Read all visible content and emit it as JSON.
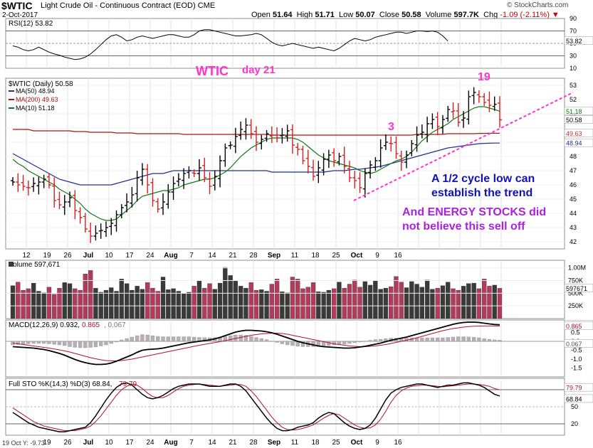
{
  "header": {
    "symbol": "$WTIC",
    "description": "Light Crude Oil - Continuous Contract (EOD)",
    "exchange": "CME",
    "date": "2-Oct-2017",
    "open_label": "Open",
    "open": "51.64",
    "high_label": "High",
    "high": "51.71",
    "low_label": "Low",
    "low": "50.07",
    "close_label": "Close",
    "close": "50.58",
    "volume_label": "Volume",
    "volume": "597.7K",
    "chg_label": "Chg",
    "chg": "-1.09 (-2.11%)",
    "watermark": "© StockCharts.com",
    "bottom_note": "19 Oct Y: -9.73"
  },
  "colors": {
    "up": "#000000",
    "down": "#d42020",
    "ma50": "#1f2f8f",
    "ma200": "#b01010",
    "ma10": "#117711",
    "annotation_magenta": "#ff33cc",
    "annotation_blue": "#1111bb",
    "annotation_purple": "#aa22dd",
    "price_tag": "#c43030"
  },
  "chart_data": [
    {
      "type": "line",
      "title": "RSI(12) 53.82",
      "legend": [
        "RSI(12) 53.82"
      ],
      "ylim": [
        10,
        90
      ],
      "yticks": [
        10,
        30,
        50,
        70,
        90
      ],
      "last_value_tag": "53.82",
      "values": [
        46,
        44,
        40,
        38,
        40,
        44,
        40,
        36,
        33,
        31,
        28,
        26,
        24,
        25,
        28,
        33,
        40,
        48,
        56,
        62,
        64,
        60,
        54,
        56,
        60,
        62,
        60,
        58,
        60,
        62,
        64,
        64,
        62,
        60,
        60,
        64,
        70,
        72,
        72,
        70,
        68,
        66,
        64,
        62,
        62,
        63,
        64,
        66,
        64,
        58,
        52,
        48,
        46,
        48,
        50,
        48,
        46,
        44,
        42,
        44,
        42,
        40,
        38,
        42,
        48,
        54,
        58,
        56,
        54,
        56,
        60,
        62,
        64,
        66,
        68,
        68,
        66,
        68,
        70,
        70,
        69,
        70,
        68,
        62,
        53.82
      ]
    },
    {
      "type": "ohlc",
      "title": "$WTIC (Daily) 50.58",
      "legend": [
        "$WTIC (Daily) 50.58",
        "MA(50) 48.94",
        "MA(200) 49.63",
        "MA(10) 51.18"
      ],
      "ylim": [
        41.5,
        53.5
      ],
      "yticks": [
        42,
        43,
        44,
        45,
        46,
        47,
        48,
        49,
        50,
        51,
        52,
        53
      ],
      "xtick_labels": [
        "12",
        "19",
        "26",
        "Jul",
        "10",
        "17",
        "24",
        "Aug",
        "7",
        "14",
        "21",
        "28",
        "Sep",
        "11",
        "18",
        "25",
        "Oct",
        "9",
        "16"
      ],
      "price_tags": [
        "51.18",
        "50.58",
        "49.63",
        "48.94"
      ],
      "closes": [
        46.2,
        46.0,
        45.9,
        45.8,
        46.1,
        46.2,
        46.4,
        46.0,
        44.9,
        44.6,
        44.8,
        45.1,
        44.2,
        43.7,
        42.9,
        42.4,
        42.6,
        42.8,
        43.0,
        43.3,
        43.9,
        44.4,
        44.8,
        45.3,
        46.5,
        47.1,
        46.0,
        44.9,
        44.3,
        44.8,
        45.5,
        46.1,
        46.4,
        46.8,
        47.0,
        46.8,
        47.2,
        46.5,
        45.9,
        46.6,
        47.7,
        48.6,
        48.8,
        49.4,
        49.9,
        50.2,
        49.6,
        49.0,
        49.2,
        49.6,
        49.5,
        49.3,
        49.5,
        49.8,
        48.8,
        48.5,
        47.7,
        47.3,
        46.6,
        47.2,
        47.8,
        48.1,
        47.7,
        48.0,
        47.3,
        46.5,
        46.3,
        45.8,
        46.8,
        47.4,
        47.7,
        48.6,
        49.0,
        48.9,
        48.2,
        47.6,
        48.1,
        48.9,
        49.5,
        49.7,
        50.3,
        50.6,
        50.1,
        50.6,
        51.3,
        51.2,
        50.4,
        50.7,
        52.2,
        52.5,
        52.2,
        51.8,
        51.6,
        51.67,
        50.58
      ],
      "ma50": [
        48.2,
        48.0,
        47.8,
        47.6,
        47.4,
        47.2,
        47.0,
        46.8,
        46.6,
        46.4,
        46.3,
        46.2,
        46.1,
        46.0,
        46.0,
        46.0,
        46.0,
        46.0,
        46.0,
        46.0,
        46.1,
        46.2,
        46.3,
        46.4,
        46.5,
        46.6,
        46.7,
        46.8,
        46.8,
        46.8,
        46.9,
        47.0,
        47.0,
        47.0,
        47.0,
        47.0,
        47.0,
        47.0,
        47.0,
        47.0,
        47.0,
        47.0,
        47.0,
        47.0,
        47.0,
        47.0,
        47.0,
        47.0,
        47.0,
        47.0,
        46.9,
        46.9,
        46.9,
        46.9,
        46.9,
        46.9,
        46.9,
        46.9,
        46.9,
        46.9,
        46.9,
        46.95,
        47.0,
        47.0,
        47.0,
        47.05,
        47.1,
        47.1,
        47.15,
        47.2,
        47.25,
        47.3,
        47.4,
        47.5,
        47.6,
        47.7,
        47.8,
        47.9,
        48.0,
        48.1,
        48.2,
        48.3,
        48.4,
        48.5,
        48.6,
        48.65,
        48.7,
        48.75,
        48.8,
        48.85,
        48.9,
        48.92,
        48.93,
        48.94,
        48.94
      ],
      "ma200": [
        49.9,
        49.9,
        49.9,
        49.9,
        49.8,
        49.8,
        49.8,
        49.8,
        49.8,
        49.8,
        49.8,
        49.8,
        49.75,
        49.75,
        49.75,
        49.7,
        49.7,
        49.7,
        49.7,
        49.7,
        49.65,
        49.65,
        49.65,
        49.65,
        49.6,
        49.6,
        49.6,
        49.6,
        49.6,
        49.6,
        49.6,
        49.6,
        49.6,
        49.55,
        49.55,
        49.55,
        49.55,
        49.55,
        49.55,
        49.55,
        49.55,
        49.55,
        49.55,
        49.55,
        49.55,
        49.55,
        49.55,
        49.55,
        49.55,
        49.55,
        49.5,
        49.5,
        49.5,
        49.5,
        49.5,
        49.5,
        49.5,
        49.5,
        49.5,
        49.5,
        49.5,
        49.5,
        49.5,
        49.5,
        49.5,
        49.5,
        49.5,
        49.5,
        49.5,
        49.5,
        49.5,
        49.5,
        49.5,
        49.5,
        49.5,
        49.5,
        49.5,
        49.5,
        49.55,
        49.55,
        49.55,
        49.55,
        49.55,
        49.55,
        49.6,
        49.6,
        49.6,
        49.6,
        49.6,
        49.6,
        49.62,
        49.62,
        49.63,
        49.63,
        49.63
      ],
      "ma10": [
        47.8,
        47.5,
        47.3,
        47.0,
        46.8,
        46.6,
        46.4,
        46.2,
        46.0,
        45.7,
        45.5,
        45.3,
        45.0,
        44.7,
        44.3,
        44.0,
        43.8,
        43.6,
        43.5,
        43.5,
        43.6,
        43.9,
        44.2,
        44.5,
        44.9,
        45.2,
        45.3,
        45.4,
        45.5,
        45.6,
        45.6,
        45.7,
        45.8,
        46.0,
        46.1,
        46.2,
        46.3,
        46.4,
        46.4,
        46.5,
        46.7,
        46.9,
        47.2,
        47.6,
        48.0,
        48.3,
        48.6,
        48.8,
        49.0,
        49.2,
        49.3,
        49.3,
        49.3,
        49.3,
        49.3,
        49.2,
        49.0,
        48.7,
        48.4,
        48.1,
        47.9,
        47.7,
        47.6,
        47.5,
        47.4,
        47.3,
        47.2,
        47.0,
        46.9,
        46.8,
        46.9,
        47.1,
        47.3,
        47.5,
        47.7,
        47.8,
        48.0,
        48.3,
        48.7,
        49.1,
        49.4,
        49.7,
        49.9,
        50.1,
        50.3,
        50.6,
        50.8,
        51.0,
        51.2,
        51.4,
        51.5,
        51.5,
        51.4,
        51.3,
        51.18
      ]
    },
    {
      "type": "bar",
      "title": "Volume 597,671",
      "legend": [
        "Volume 597,671"
      ],
      "yticks": [
        "1.00M",
        "750K",
        "500K",
        "250K"
      ],
      "last_value_tag": "597671",
      "values_k": [
        650,
        720,
        560,
        590,
        700,
        540,
        510,
        620,
        480,
        600,
        710,
        690,
        590,
        560,
        880,
        950,
        600,
        520,
        560,
        610,
        540,
        780,
        690,
        560,
        640,
        580,
        710,
        600,
        540,
        820,
        570,
        590,
        540,
        490,
        520,
        640,
        740,
        600,
        690,
        580,
        700,
        1010,
        850,
        740,
        640,
        600,
        710,
        560,
        570,
        540,
        680,
        780,
        530,
        510,
        820,
        780,
        590,
        620,
        710,
        530,
        520,
        560,
        590,
        720,
        600,
        680,
        760,
        620,
        730,
        660,
        750,
        580,
        600,
        630,
        830,
        720,
        610,
        730,
        680,
        620,
        760,
        580,
        600,
        650,
        720,
        590,
        560,
        640,
        690,
        700,
        590,
        780,
        640,
        660,
        597.671
      ]
    },
    {
      "type": "line",
      "title": "MACD(12,26,9) 0.932, 0.865, 0.067",
      "legend": [
        "MACD(12,26,9) 0.932",
        "0.865",
        "0.067"
      ],
      "ylim": [
        -2.0,
        1.2
      ],
      "yticks": [
        "0.932",
        "0.5",
        "0.0",
        "-0.5",
        "-1.0",
        "-1.5"
      ],
      "value_tags": [
        "0.932",
        "0.865",
        "0.067"
      ],
      "macd": [
        -0.3,
        -0.32,
        -0.34,
        -0.36,
        -0.38,
        -0.42,
        -0.46,
        -0.52,
        -0.6,
        -0.68,
        -0.78,
        -0.9,
        -1.02,
        -1.12,
        -1.2,
        -1.26,
        -1.3,
        -1.3,
        -1.28,
        -1.22,
        -1.12,
        -1.0,
        -0.88,
        -0.76,
        -0.62,
        -0.5,
        -0.46,
        -0.44,
        -0.42,
        -0.38,
        -0.32,
        -0.26,
        -0.2,
        -0.14,
        -0.08,
        -0.04,
        0.0,
        0.04,
        0.08,
        0.14,
        0.22,
        0.32,
        0.42,
        0.52,
        0.58,
        0.62,
        0.62,
        0.6,
        0.58,
        0.54,
        0.48,
        0.4,
        0.3,
        0.2,
        0.1,
        0.0,
        -0.08,
        -0.14,
        -0.2,
        -0.26,
        -0.3,
        -0.32,
        -0.34,
        -0.36,
        -0.38,
        -0.38,
        -0.36,
        -0.32,
        -0.28,
        -0.22,
        -0.16,
        -0.1,
        -0.02,
        0.06,
        0.12,
        0.18,
        0.24,
        0.32,
        0.4,
        0.48,
        0.56,
        0.64,
        0.72,
        0.8,
        0.88,
        0.96,
        1.02,
        1.06,
        1.08,
        1.08,
        1.06,
        1.02,
        0.98,
        0.95,
        0.932
      ],
      "signal": [
        -0.1,
        -0.14,
        -0.18,
        -0.22,
        -0.26,
        -0.3,
        -0.34,
        -0.38,
        -0.43,
        -0.48,
        -0.54,
        -0.6,
        -0.68,
        -0.76,
        -0.84,
        -0.92,
        -0.98,
        -1.04,
        -1.08,
        -1.1,
        -1.1,
        -1.08,
        -1.04,
        -1.0,
        -0.94,
        -0.88,
        -0.82,
        -0.76,
        -0.7,
        -0.64,
        -0.58,
        -0.52,
        -0.46,
        -0.4,
        -0.34,
        -0.28,
        -0.22,
        -0.17,
        -0.12,
        -0.07,
        -0.02,
        0.04,
        0.1,
        0.16,
        0.22,
        0.28,
        0.34,
        0.38,
        0.42,
        0.44,
        0.46,
        0.46,
        0.44,
        0.4,
        0.34,
        0.28,
        0.22,
        0.16,
        0.1,
        0.04,
        -0.02,
        -0.08,
        -0.14,
        -0.18,
        -0.22,
        -0.26,
        -0.28,
        -0.3,
        -0.3,
        -0.28,
        -0.26,
        -0.22,
        -0.18,
        -0.12,
        -0.06,
        0.0,
        0.06,
        0.12,
        0.2,
        0.28,
        0.36,
        0.44,
        0.52,
        0.6,
        0.66,
        0.72,
        0.76,
        0.8,
        0.83,
        0.85,
        0.86,
        0.865,
        0.865,
        0.865,
        0.865
      ]
    },
    {
      "type": "line",
      "title": "Full STO %K(14,3) %D(3) 68.84, 79.79",
      "legend": [
        "Full STO %K(14,3) %D(3) 68.84",
        "79.79"
      ],
      "ylim": [
        0,
        100
      ],
      "yticks": [
        "20",
        "50",
        "68.84",
        "79.79"
      ],
      "value_tags": [
        "79.79",
        "68.84"
      ],
      "k": [
        40,
        34,
        28,
        22,
        18,
        14,
        12,
        10,
        8,
        6,
        6,
        8,
        10,
        12,
        14,
        22,
        34,
        48,
        62,
        74,
        84,
        90,
        92,
        88,
        80,
        72,
        66,
        64,
        66,
        70,
        76,
        82,
        86,
        88,
        90,
        90,
        90,
        88,
        86,
        86,
        86,
        88,
        90,
        90,
        86,
        78,
        66,
        54,
        42,
        30,
        20,
        12,
        8,
        8,
        10,
        14,
        16,
        18,
        22,
        30,
        36,
        40,
        38,
        30,
        22,
        16,
        12,
        10,
        12,
        18,
        30,
        46,
        62,
        74,
        80,
        84,
        86,
        88,
        90,
        90,
        88,
        86,
        84,
        86,
        88,
        88,
        90,
        92,
        92,
        90,
        88,
        84,
        78,
        72,
        68.84
      ],
      "d": [
        48,
        42,
        36,
        30,
        24,
        20,
        16,
        14,
        12,
        10,
        8,
        8,
        8,
        10,
        12,
        16,
        24,
        34,
        46,
        58,
        70,
        80,
        86,
        90,
        88,
        82,
        74,
        68,
        66,
        66,
        70,
        76,
        82,
        86,
        88,
        89,
        90,
        89,
        88,
        87,
        86,
        87,
        88,
        89,
        89,
        86,
        78,
        68,
        56,
        44,
        32,
        22,
        14,
        10,
        9,
        10,
        12,
        15,
        18,
        24,
        30,
        35,
        38,
        36,
        30,
        24,
        18,
        14,
        12,
        13,
        18,
        28,
        42,
        58,
        70,
        78,
        83,
        86,
        87,
        88,
        88,
        87,
        86,
        85,
        86,
        87,
        88,
        89,
        90,
        90,
        89,
        88,
        86,
        82,
        79.79
      ]
    }
  ],
  "annotations": {
    "title": "WTIC",
    "day": "day 21",
    "count_19": "19",
    "count_3": "3",
    "note1_line1": "A 1/2 cycle low can",
    "note1_line2": "establish the trend",
    "note2_line1": "And ENERGY STOCKS did",
    "note2_line2": "not believe this sell off"
  }
}
